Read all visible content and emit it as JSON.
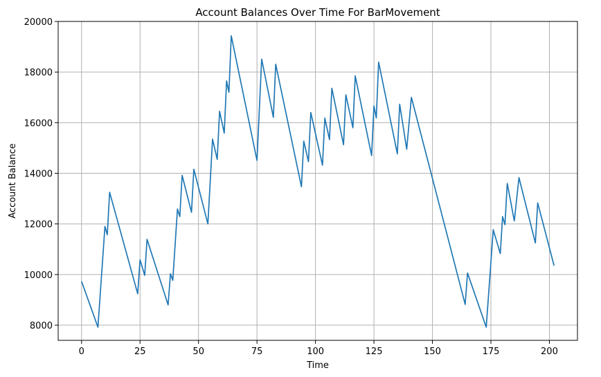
{
  "chart_data": {
    "type": "line",
    "title": "Account Balances Over Time For BarMovement",
    "xlabel": "Time",
    "ylabel": "Account Balance",
    "xlim": [
      -10,
      212
    ],
    "ylim": [
      7400,
      20000
    ],
    "xticks": [
      0,
      25,
      50,
      75,
      100,
      125,
      150,
      175,
      200
    ],
    "yticks": [
      8000,
      10000,
      12000,
      14000,
      16000,
      18000,
      20000
    ],
    "grid": true,
    "colors": {
      "line": "#1f77b4",
      "grid": "#b0b0b0",
      "axis": "#000000"
    },
    "series": [
      {
        "x": [
          0,
          7,
          10,
          11,
          12,
          24,
          25,
          27,
          28,
          37,
          38,
          39,
          41,
          42,
          43,
          47,
          48,
          54,
          56,
          58,
          59,
          61,
          62,
          63,
          64,
          75,
          77,
          82,
          83,
          94,
          95,
          97,
          98,
          103,
          104,
          106,
          107,
          112,
          113,
          116,
          117,
          124,
          125,
          126,
          127,
          135,
          136,
          139,
          141,
          164,
          165,
          173,
          176,
          179,
          180,
          181,
          182,
          185,
          187,
          194,
          195,
          202
        ],
        "y": [
          9730,
          7920,
          11900,
          11570,
          13250,
          9240,
          10580,
          9970,
          11390,
          8800,
          10030,
          9770,
          12590,
          12290,
          13920,
          12460,
          14160,
          12000,
          15350,
          14550,
          16450,
          15590,
          17650,
          17200,
          19430,
          14510,
          18510,
          16210,
          18310,
          13470,
          15270,
          14460,
          16400,
          14320,
          16180,
          15330,
          17360,
          15130,
          17100,
          15800,
          17850,
          14700,
          16660,
          16190,
          18390,
          14770,
          16730,
          14950,
          17000,
          8820,
          10060,
          7920,
          11770,
          10830,
          12290,
          11970,
          13600,
          12120,
          13830,
          11250,
          12830,
          10350
        ]
      }
    ]
  }
}
